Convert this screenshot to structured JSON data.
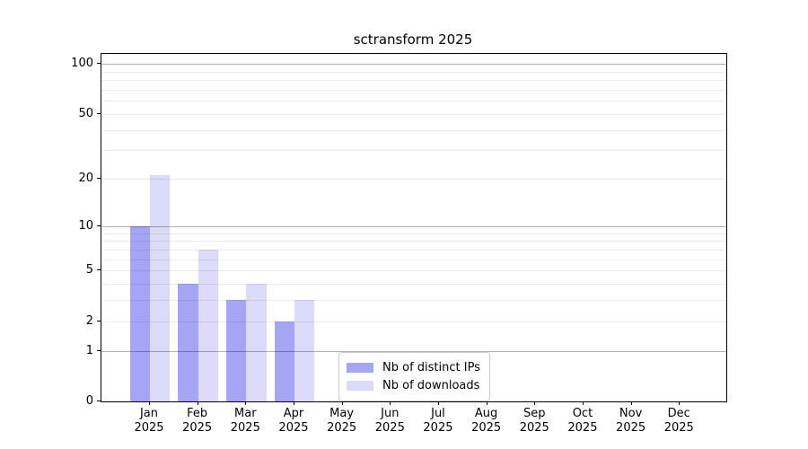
{
  "title": "sctransform 2025",
  "chart_data": {
    "type": "bar",
    "title": "sctransform 2025",
    "categories": [
      "Jan",
      "Feb",
      "Mar",
      "Apr",
      "May",
      "Jun",
      "Jul",
      "Aug",
      "Sep",
      "Oct",
      "Nov",
      "Dec"
    ],
    "x_tick_second_line": "2025",
    "series": [
      {
        "name": "Nb of distinct IPs",
        "color": "#a5a5f5",
        "values": [
          10,
          4,
          3,
          2,
          0,
          0,
          0,
          0,
          0,
          0,
          0,
          0
        ]
      },
      {
        "name": "Nb of downloads",
        "color": "#dbdbf9",
        "values": [
          21,
          7,
          4,
          3,
          0,
          0,
          0,
          0,
          0,
          0,
          0,
          0
        ]
      }
    ],
    "xlabel": "",
    "ylabel": "",
    "y_scale": "log1p",
    "y_ticks": [
      0,
      1,
      2,
      5,
      10,
      20,
      50,
      100
    ],
    "y_major_gridlines": [
      1,
      10,
      100
    ],
    "y_minor_gridlines": [
      2,
      3,
      4,
      5,
      6,
      7,
      8,
      9,
      20,
      30,
      40,
      50,
      60,
      70,
      80,
      90
    ],
    "ylim": [
      0,
      115
    ],
    "grid": "horizontal",
    "legend_position": "lower-center"
  },
  "legend": {
    "items": [
      {
        "label": "Nb of distinct IPs",
        "color": "#a5a5f5"
      },
      {
        "label": "Nb of downloads",
        "color": "#dbdbf9"
      }
    ]
  }
}
